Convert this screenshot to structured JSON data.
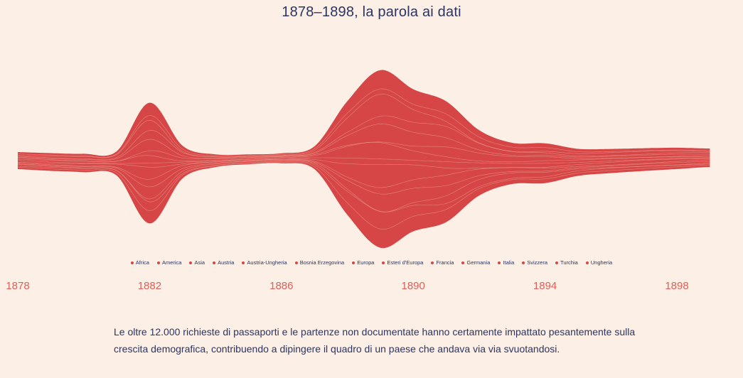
{
  "chart_data": {
    "type": "area",
    "subtype": "streamgraph",
    "title": "1878–1898, la parola ai dati",
    "x": [
      1878,
      1879,
      1880,
      1881,
      1882,
      1883,
      1884,
      1885,
      1886,
      1887,
      1888,
      1889,
      1890,
      1891,
      1892,
      1893,
      1894,
      1895,
      1896,
      1897,
      1898,
      1899
    ],
    "total_thickness": [
      24,
      25,
      26,
      34,
      170,
      46,
      18,
      14,
      14,
      32,
      160,
      250,
      200,
      170,
      92,
      58,
      56,
      38,
      34,
      32,
      30,
      26
    ],
    "series": [
      "Africa",
      "America",
      "Asia",
      "Austria",
      "Austria-Ungheria",
      "Bosnia Erzegovina",
      "Europa",
      "Esteri d'Europa",
      "Francia",
      "Germania",
      "Italia",
      "Svizzera",
      "Turchia",
      "Ungheria"
    ],
    "x_ticks": [
      "1878",
      "1882",
      "1886",
      "1890",
      "1894",
      "1898"
    ],
    "color": "#d64646",
    "line_color": "#f2b8a8"
  },
  "caption": "Le oltre 12.000 richieste di passaporti e le partenze non documentate hanno certamente impattato pesantemente sulla crescita demografica, contribuendo a dipingere il quadro di un paese che andava via via svuotandosi."
}
